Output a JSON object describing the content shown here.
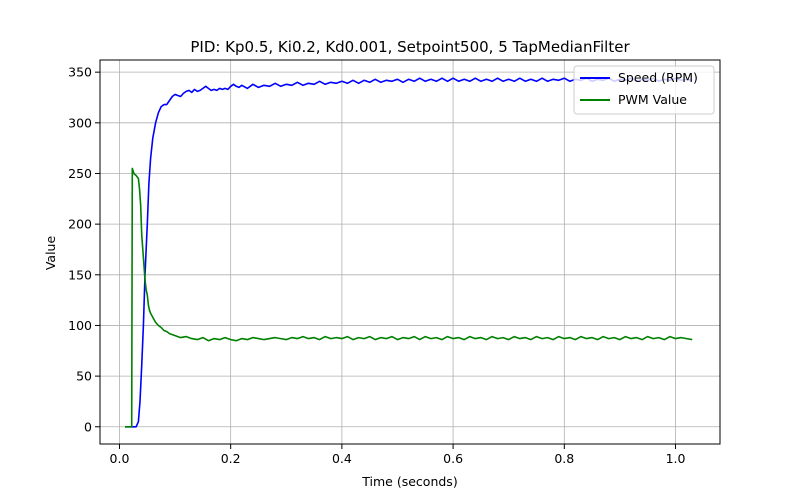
{
  "chart_data": {
    "type": "line",
    "title": "PID: Kp0.5, Ki0.2, Kd0.001, Setpoint500, 5 TapMedianFilter",
    "xlabel": "Time (seconds)",
    "ylabel": "Value",
    "xlim": [
      -0.035,
      1.08
    ],
    "ylim": [
      -17,
      362
    ],
    "xticks": [
      0.0,
      0.2,
      0.4,
      0.6,
      0.8,
      1.0
    ],
    "xtick_labels": [
      "0.0",
      "0.2",
      "0.4",
      "0.6",
      "0.8",
      "1.0"
    ],
    "yticks": [
      0,
      50,
      100,
      150,
      200,
      250,
      300,
      350
    ],
    "ytick_labels": [
      "0",
      "50",
      "100",
      "150",
      "200",
      "250",
      "300",
      "350"
    ],
    "grid": true,
    "legend_position": "top-right",
    "series": [
      {
        "name": "Speed (RPM)",
        "color": "#0000ff",
        "x": [
          0.01,
          0.025,
          0.03,
          0.034,
          0.037,
          0.04,
          0.043,
          0.046,
          0.05,
          0.053,
          0.056,
          0.06,
          0.065,
          0.07,
          0.075,
          0.08,
          0.085,
          0.09,
          0.095,
          0.1,
          0.105,
          0.11,
          0.115,
          0.12,
          0.125,
          0.13,
          0.135,
          0.14,
          0.145,
          0.15,
          0.155,
          0.16,
          0.165,
          0.17,
          0.175,
          0.18,
          0.185,
          0.19,
          0.195,
          0.2,
          0.205,
          0.21,
          0.215,
          0.22,
          0.23,
          0.24,
          0.25,
          0.26,
          0.27,
          0.28,
          0.29,
          0.3,
          0.31,
          0.32,
          0.33,
          0.34,
          0.35,
          0.36,
          0.37,
          0.38,
          0.39,
          0.4,
          0.41,
          0.42,
          0.43,
          0.44,
          0.45,
          0.46,
          0.47,
          0.48,
          0.49,
          0.5,
          0.51,
          0.52,
          0.53,
          0.54,
          0.55,
          0.56,
          0.57,
          0.58,
          0.59,
          0.6,
          0.61,
          0.62,
          0.63,
          0.64,
          0.65,
          0.66,
          0.67,
          0.68,
          0.69,
          0.7,
          0.71,
          0.72,
          0.73,
          0.74,
          0.75,
          0.76,
          0.77,
          0.78,
          0.79,
          0.8,
          0.81,
          0.82,
          0.83,
          0.84,
          0.85,
          0.86,
          0.87,
          0.88,
          0.89,
          0.9,
          0.91,
          0.92,
          0.93,
          0.94,
          0.95,
          0.96,
          0.97,
          0.98,
          0.99,
          1.0,
          1.01,
          1.02,
          1.03
        ],
        "values": [
          0,
          0,
          0,
          5,
          25,
          60,
          100,
          150,
          200,
          240,
          265,
          285,
          300,
          310,
          316,
          318,
          318,
          322,
          326,
          328,
          327,
          326,
          329,
          331,
          332,
          330,
          333,
          331,
          332,
          334,
          336,
          334,
          332,
          333,
          332,
          334,
          333,
          334,
          333,
          336,
          338,
          336,
          335,
          337,
          334,
          338,
          335,
          337,
          336,
          339,
          336,
          338,
          337,
          340,
          337,
          339,
          338,
          341,
          338,
          340,
          339,
          341,
          339,
          342,
          339,
          342,
          340,
          343,
          340,
          342,
          341,
          343,
          340,
          343,
          341,
          344,
          341,
          343,
          341,
          344,
          341,
          344,
          341,
          343,
          341,
          344,
          341,
          343,
          341,
          344,
          341,
          343,
          341,
          344,
          341,
          343,
          341,
          344,
          341,
          343,
          342,
          344,
          341,
          343,
          342,
          344,
          341,
          343,
          342,
          344,
          341,
          343,
          342,
          344,
          341,
          343,
          342,
          344,
          341,
          343,
          342,
          344,
          342,
          343,
          342
        ]
      },
      {
        "name": "PWM Value",
        "color": "#008000",
        "x": [
          0.01,
          0.02,
          0.022,
          0.023,
          0.026,
          0.03,
          0.034,
          0.036,
          0.038,
          0.04,
          0.042,
          0.044,
          0.046,
          0.048,
          0.05,
          0.052,
          0.054,
          0.056,
          0.06,
          0.065,
          0.07,
          0.075,
          0.08,
          0.085,
          0.09,
          0.095,
          0.1,
          0.105,
          0.11,
          0.12,
          0.13,
          0.14,
          0.15,
          0.16,
          0.17,
          0.18,
          0.19,
          0.2,
          0.21,
          0.22,
          0.23,
          0.24,
          0.25,
          0.26,
          0.27,
          0.28,
          0.29,
          0.3,
          0.31,
          0.32,
          0.33,
          0.34,
          0.35,
          0.36,
          0.37,
          0.38,
          0.39,
          0.4,
          0.41,
          0.42,
          0.43,
          0.44,
          0.45,
          0.46,
          0.47,
          0.48,
          0.49,
          0.5,
          0.51,
          0.52,
          0.53,
          0.54,
          0.55,
          0.56,
          0.57,
          0.58,
          0.59,
          0.6,
          0.61,
          0.62,
          0.63,
          0.64,
          0.65,
          0.66,
          0.67,
          0.68,
          0.69,
          0.7,
          0.71,
          0.72,
          0.73,
          0.74,
          0.75,
          0.76,
          0.77,
          0.78,
          0.79,
          0.8,
          0.81,
          0.82,
          0.83,
          0.84,
          0.85,
          0.86,
          0.87,
          0.88,
          0.89,
          0.9,
          0.91,
          0.92,
          0.93,
          0.94,
          0.95,
          0.96,
          0.97,
          0.98,
          0.99,
          1.0,
          1.01,
          1.02,
          1.03
        ],
        "values": [
          0,
          0,
          0,
          255,
          250,
          248,
          245,
          235,
          220,
          190,
          175,
          160,
          145,
          135,
          130,
          120,
          115,
          112,
          108,
          103,
          100,
          98,
          95,
          94,
          92,
          91,
          90,
          89,
          88,
          89,
          87,
          86,
          88,
          85,
          87,
          86,
          88,
          86,
          85,
          87,
          86,
          88,
          87,
          86,
          87,
          88,
          87,
          86,
          88,
          87,
          89,
          87,
          88,
          86,
          89,
          87,
          88,
          87,
          89,
          86,
          88,
          87,
          89,
          86,
          88,
          87,
          89,
          86,
          88,
          87,
          89,
          86,
          89,
          87,
          88,
          86,
          89,
          87,
          88,
          86,
          89,
          87,
          88,
          86,
          89,
          87,
          88,
          86,
          89,
          87,
          88,
          86,
          89,
          87,
          88,
          86,
          89,
          87,
          88,
          86,
          89,
          87,
          88,
          86,
          89,
          87,
          88,
          86,
          89,
          87,
          88,
          86,
          89,
          87,
          88,
          86,
          89,
          87,
          88,
          87,
          86
        ]
      }
    ]
  }
}
